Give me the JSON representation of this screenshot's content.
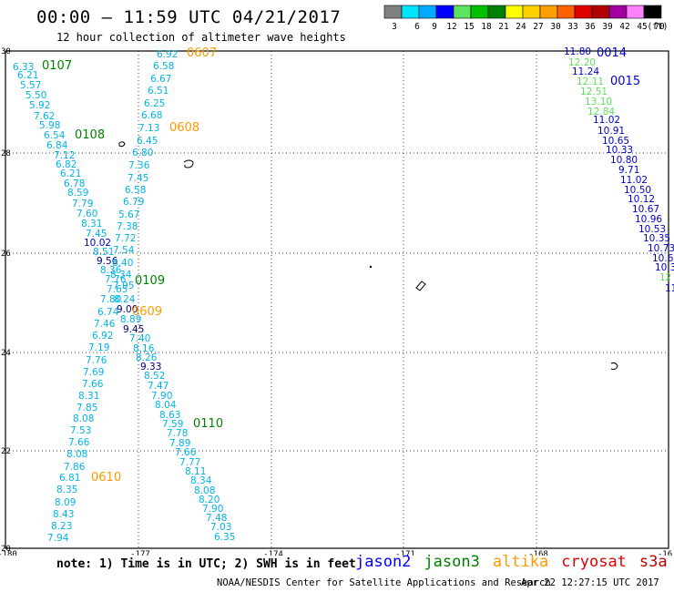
{
  "title": "00:00 – 11:59 UTC 04/21/2017",
  "subtitle": "12 hour collection of altimeter wave heights",
  "colorbar": {
    "labels": [
      "3",
      "6",
      "9",
      "12",
      "15",
      "18",
      "21",
      "24",
      "27",
      "30",
      "33",
      "36",
      "39",
      "42",
      "45",
      "70"
    ],
    "unit": "(ft)",
    "colors": [
      "#808080",
      "#00e5ff",
      "#00aaff",
      "#0000ff",
      "#5de35d",
      "#00c000",
      "#008000",
      "#ffff00",
      "#ffd000",
      "#ffa000",
      "#ff6000",
      "#e00000",
      "#b00000",
      "#a000a0",
      "#ff80ff",
      "#000000"
    ]
  },
  "axes": {
    "lon_ticks": [
      "-180",
      "-177",
      "-174",
      "-171",
      "-168",
      "-16"
    ],
    "lat_ticks": [
      "30",
      "28",
      "26",
      "24",
      "22",
      "20"
    ]
  },
  "series_colors": {
    "light_blue": "#00b4e6",
    "blue": "#0000cc",
    "navy": "#000080",
    "green": "#008000",
    "light_green": "#60e060",
    "orange": "#ff9900"
  },
  "labels": [
    {
      "t": "6.33",
      "c": "light_blue"
    },
    {
      "t": "6.21",
      "c": "light_blue"
    },
    {
      "t": "5.57",
      "c": "light_blue"
    },
    {
      "t": "5.50",
      "c": "light_blue"
    },
    {
      "t": "5.92",
      "c": "light_blue"
    },
    {
      "t": "7.62",
      "c": "light_blue"
    },
    {
      "t": "5.98",
      "c": "light_blue"
    },
    {
      "t": "6.54",
      "c": "light_blue"
    },
    {
      "t": "6.84",
      "c": "light_blue"
    },
    {
      "t": "7.12",
      "c": "light_blue"
    },
    {
      "t": "6.82",
      "c": "light_blue"
    },
    {
      "t": "6.21",
      "c": "light_blue"
    },
    {
      "t": "6.78",
      "c": "light_blue"
    },
    {
      "t": "8.59",
      "c": "light_blue"
    },
    {
      "t": "7.79",
      "c": "light_blue"
    },
    {
      "t": "7.60",
      "c": "light_blue"
    },
    {
      "t": "8.31",
      "c": "light_blue"
    },
    {
      "t": "7.45",
      "c": "light_blue"
    },
    {
      "t": "10.02",
      "c": "blue"
    },
    {
      "t": "8.51",
      "c": "light_blue"
    },
    {
      "t": "9.56",
      "c": "navy"
    },
    {
      "t": "8.36",
      "c": "light_blue"
    },
    {
      "t": "7.76",
      "c": "light_blue"
    },
    {
      "t": "7.65",
      "c": "light_blue"
    },
    {
      "t": "7.80",
      "c": "light_blue"
    },
    {
      "t": "6.74",
      "c": "light_blue"
    },
    {
      "t": "7.46",
      "c": "light_blue"
    },
    {
      "t": "6.92",
      "c": "light_blue"
    },
    {
      "t": "7.19",
      "c": "light_blue"
    },
    {
      "t": "7.76",
      "c": "light_blue"
    },
    {
      "t": "7.69",
      "c": "light_blue"
    },
    {
      "t": "7.66",
      "c": "light_blue"
    },
    {
      "t": "8.31",
      "c": "light_blue"
    },
    {
      "t": "7.85",
      "c": "light_blue"
    },
    {
      "t": "8.08",
      "c": "light_blue"
    },
    {
      "t": "7.53",
      "c": "light_blue"
    },
    {
      "t": "7.66",
      "c": "light_blue"
    },
    {
      "t": "8.08",
      "c": "light_blue"
    },
    {
      "t": "7.86",
      "c": "light_blue"
    },
    {
      "t": "6.81",
      "c": "light_blue"
    },
    {
      "t": "8.35",
      "c": "light_blue"
    },
    {
      "t": "8.09",
      "c": "light_blue"
    },
    {
      "t": "8.43",
      "c": "light_blue"
    },
    {
      "t": "8.23",
      "c": "light_blue"
    },
    {
      "t": "7.94",
      "c": "light_blue"
    },
    {
      "t": "6.92",
      "c": "light_blue"
    },
    {
      "t": "6.58",
      "c": "light_blue"
    },
    {
      "t": "6.67",
      "c": "light_blue"
    },
    {
      "t": "6.51",
      "c": "light_blue"
    },
    {
      "t": "6.25",
      "c": "light_blue"
    },
    {
      "t": "6.68",
      "c": "light_blue"
    },
    {
      "t": "7.13",
      "c": "light_blue"
    },
    {
      "t": "6.45",
      "c": "light_blue"
    },
    {
      "t": "6.80",
      "c": "light_blue"
    },
    {
      "t": "7.36",
      "c": "light_blue"
    },
    {
      "t": "7.45",
      "c": "light_blue"
    },
    {
      "t": "6.58",
      "c": "light_blue"
    },
    {
      "t": "6.79",
      "c": "light_blue"
    },
    {
      "t": "5.67",
      "c": "light_blue"
    },
    {
      "t": "7.38",
      "c": "light_blue"
    },
    {
      "t": "7.72",
      "c": "light_blue"
    },
    {
      "t": "7.54",
      "c": "light_blue"
    },
    {
      "t": "8.40",
      "c": "light_blue"
    },
    {
      "t": "8.34",
      "c": "light_blue"
    },
    {
      "t": "7.95",
      "c": "light_blue"
    },
    {
      "t": "8.24",
      "c": "light_blue"
    },
    {
      "t": "9.00",
      "c": "navy"
    },
    {
      "t": "8.89",
      "c": "light_blue"
    },
    {
      "t": "9.45",
      "c": "navy"
    },
    {
      "t": "7.40",
      "c": "light_blue"
    },
    {
      "t": "8.16",
      "c": "light_blue"
    },
    {
      "t": "8.26",
      "c": "light_blue"
    },
    {
      "t": "9.33",
      "c": "navy"
    },
    {
      "t": "8.52",
      "c": "light_blue"
    },
    {
      "t": "7.47",
      "c": "light_blue"
    },
    {
      "t": "7.90",
      "c": "light_blue"
    },
    {
      "t": "8.04",
      "c": "light_blue"
    },
    {
      "t": "8.63",
      "c": "light_blue"
    },
    {
      "t": "7.59",
      "c": "light_blue"
    },
    {
      "t": "7.78",
      "c": "light_blue"
    },
    {
      "t": "7.89",
      "c": "light_blue"
    },
    {
      "t": "7.66",
      "c": "light_blue"
    },
    {
      "t": "7.77",
      "c": "light_blue"
    },
    {
      "t": "8.11",
      "c": "light_blue"
    },
    {
      "t": "8.34",
      "c": "light_blue"
    },
    {
      "t": "8.08",
      "c": "light_blue"
    },
    {
      "t": "8.20",
      "c": "light_blue"
    },
    {
      "t": "7.90",
      "c": "light_blue"
    },
    {
      "t": "7.48",
      "c": "light_blue"
    },
    {
      "t": "7.03",
      "c": "light_blue"
    },
    {
      "t": "6.35",
      "c": "light_blue"
    },
    {
      "t": "11.80",
      "c": "blue"
    },
    {
      "t": "12.20",
      "c": "light_green"
    },
    {
      "t": "11.24",
      "c": "blue"
    },
    {
      "t": "12.11",
      "c": "light_green"
    },
    {
      "t": "12.51",
      "c": "light_green"
    },
    {
      "t": "13.10",
      "c": "light_green"
    },
    {
      "t": "12.84",
      "c": "light_green"
    },
    {
      "t": "11.02",
      "c": "blue"
    },
    {
      "t": "10.91",
      "c": "blue"
    },
    {
      "t": "10.65",
      "c": "blue"
    },
    {
      "t": "10.33",
      "c": "blue"
    },
    {
      "t": "10.80",
      "c": "blue"
    },
    {
      "t": "9.71",
      "c": "blue"
    },
    {
      "t": "11.02",
      "c": "blue"
    },
    {
      "t": "10.50",
      "c": "blue"
    },
    {
      "t": "10.12",
      "c": "blue"
    },
    {
      "t": "10.67",
      "c": "blue"
    },
    {
      "t": "10.96",
      "c": "blue"
    },
    {
      "t": "10.53",
      "c": "blue"
    },
    {
      "t": "10.35",
      "c": "blue"
    },
    {
      "t": "10.73",
      "c": "blue"
    },
    {
      "t": "10.6",
      "c": "blue"
    },
    {
      "t": "10.3",
      "c": "blue"
    },
    {
      "t": "12",
      "c": "light_green"
    },
    {
      "t": "11",
      "c": "blue"
    }
  ],
  "pass_times": [
    {
      "t": "0107",
      "c": "green"
    },
    {
      "t": "0108",
      "c": "green"
    },
    {
      "t": "0109",
      "c": "green"
    },
    {
      "t": "0110",
      "c": "green"
    },
    {
      "t": "0607",
      "c": "orange"
    },
    {
      "t": "0608",
      "c": "orange"
    },
    {
      "t": "0609",
      "c": "orange"
    },
    {
      "t": "0610",
      "c": "orange"
    },
    {
      "t": "0014",
      "c": "blue"
    },
    {
      "t": "0015",
      "c": "blue"
    }
  ],
  "footer": {
    "note": "note: 1) Time is in UTC; 2) SWH is in feet",
    "satellites": [
      {
        "name": "jason2",
        "color": "#0000ff"
      },
      {
        "name": "jason3",
        "color": "#008000"
      },
      {
        "name": "altika",
        "color": "#ff9900"
      },
      {
        "name": "cryosat",
        "color": "#e00000"
      },
      {
        "name": "s3a",
        "color": "#c00000"
      }
    ],
    "credit": "NOAA/NESDIS Center for Satellite Applications and Research",
    "timestamp": "Apr 22 12:27:15 UTC 2017"
  }
}
